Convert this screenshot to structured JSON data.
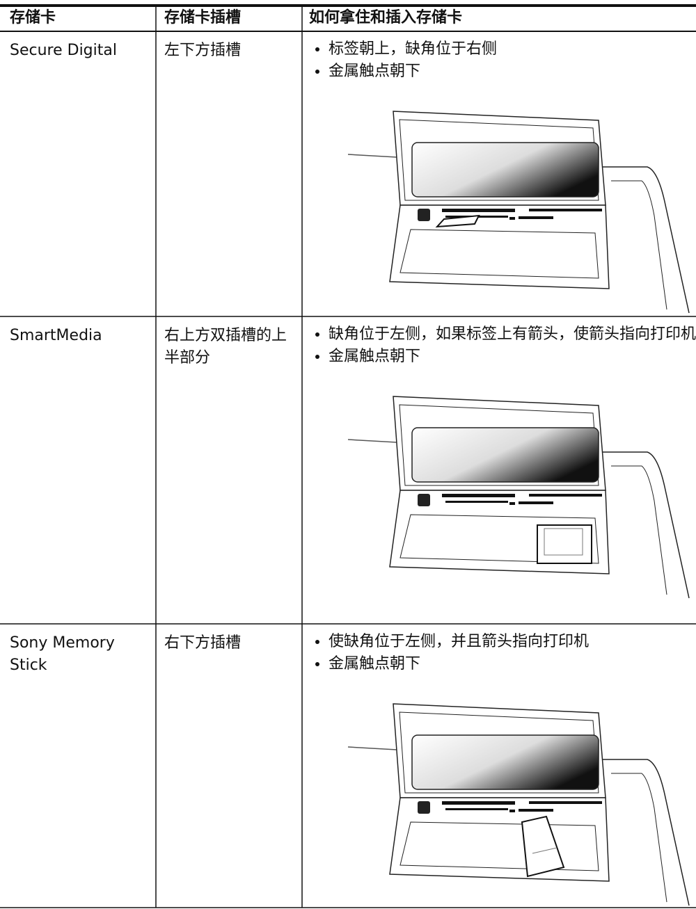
{
  "table": {
    "headers": [
      "存储卡",
      "存储卡插槽",
      "如何拿住和插入存储卡"
    ],
    "rows": [
      [
        "Secure Digital",
        "左下方插槽",
        [
          "标签朝上，缺角位于右侧",
          "金属触点朝下"
        ]
      ],
      [
        "SmartMedia",
        "右上方双插槽的上半部分",
        [
          "缺角位于左侧，如果标签上有箭头，使箭头指向打印机",
          "金属触点朝下"
        ]
      ],
      [
        "Sony Memory Stick",
        "右下方插槽",
        [
          "使缺角位于左侧，并且箭头指向打印机",
          "金属触点朝下"
        ]
      ]
    ]
  }
}
